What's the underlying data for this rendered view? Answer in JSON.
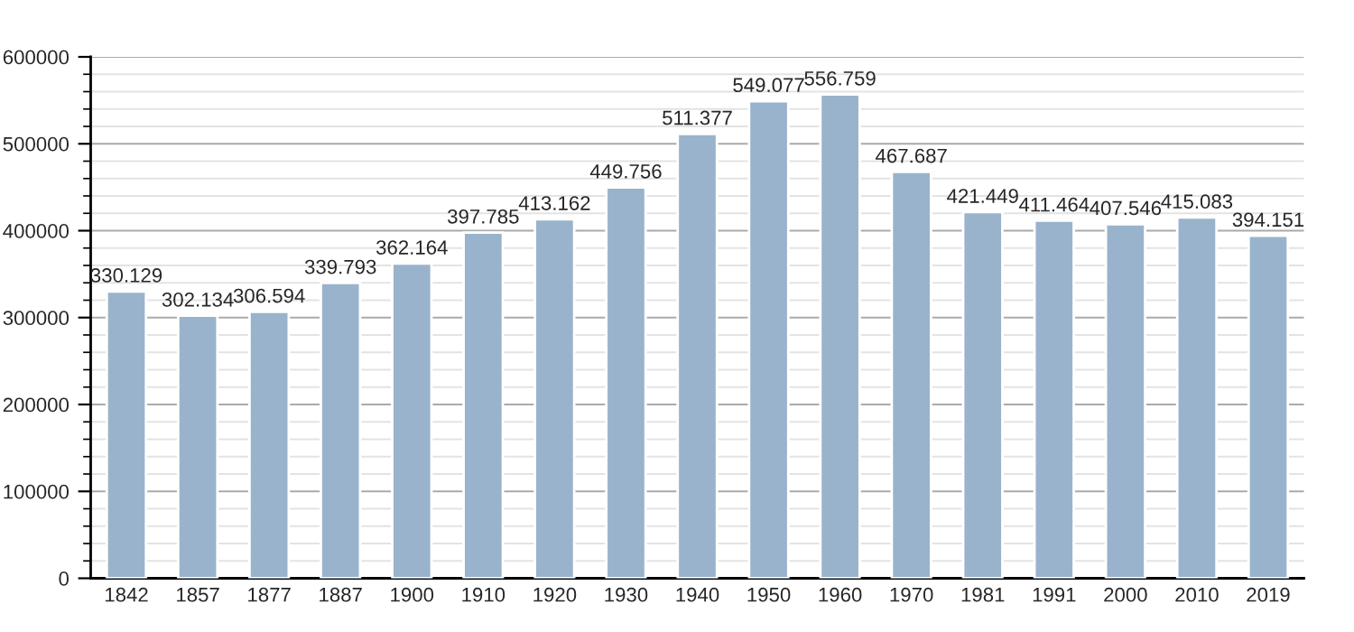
{
  "chart_data": {
    "type": "bar",
    "categories": [
      "1842",
      "1857",
      "1877",
      "1887",
      "1900",
      "1910",
      "1920",
      "1930",
      "1940",
      "1950",
      "1960",
      "1970",
      "1981",
      "1991",
      "2000",
      "2010",
      "2019"
    ],
    "values": [
      330129,
      302134,
      306594,
      339793,
      362164,
      397785,
      413162,
      449756,
      511377,
      549077,
      556759,
      467687,
      421449,
      411464,
      407546,
      415083,
      394151
    ],
    "value_labels": [
      "330.129",
      "302.134",
      "306.594",
      "339.793",
      "362.164",
      "397.785",
      "413.162",
      "449.756",
      "511.377",
      "549.077",
      "556.759",
      "467.687",
      "421.449",
      "411.464",
      "407.546",
      "415.083",
      "394.151"
    ],
    "color": "#99b3cc",
    "ylim": [
      0,
      600000
    ],
    "yticks": [
      0,
      100000,
      200000,
      300000,
      400000,
      500000,
      600000
    ],
    "grid": "y",
    "legend": false
  }
}
